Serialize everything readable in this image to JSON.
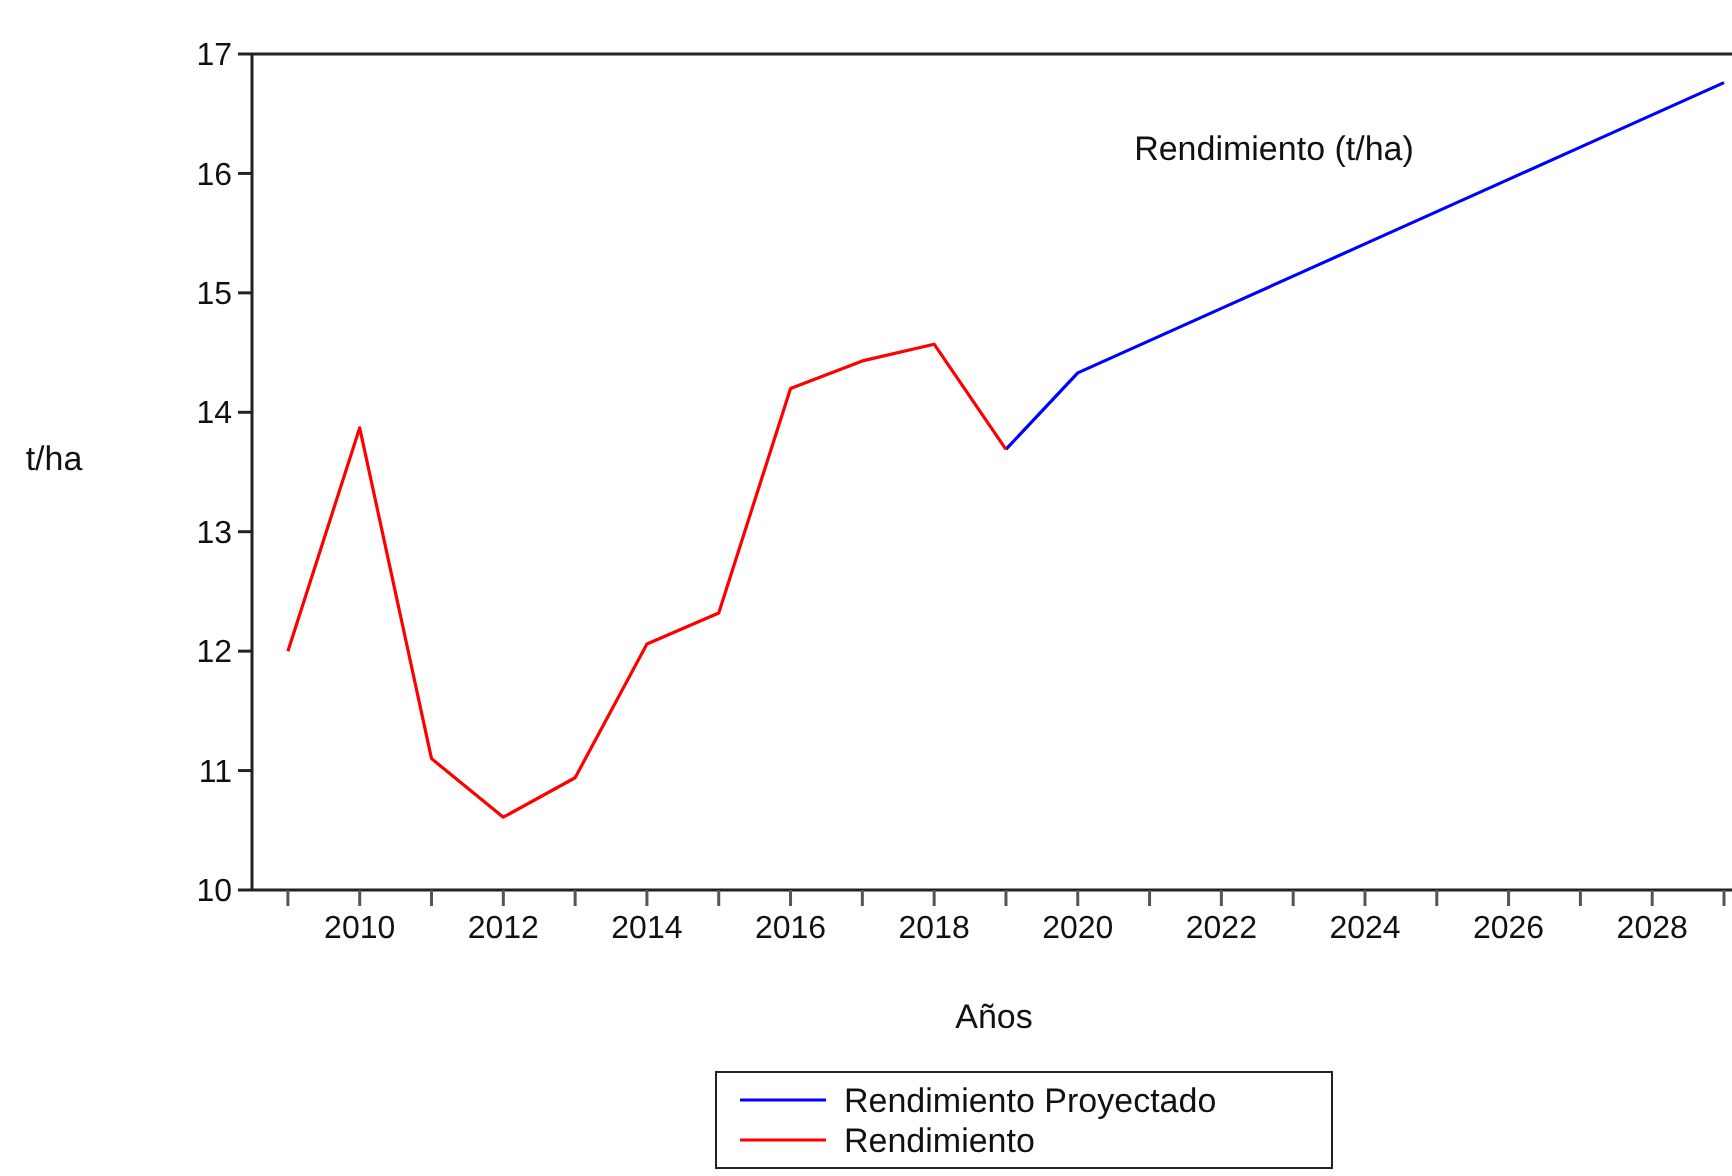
{
  "chart_data": {
    "type": "line",
    "title": "Rendimiento (t/ha)",
    "xlabel": "Años",
    "ylabel": "t/ha",
    "x": [
      2009,
      2010,
      2011,
      2012,
      2013,
      2014,
      2015,
      2016,
      2017,
      2018,
      2019,
      2020,
      2021,
      2022,
      2023,
      2024,
      2025,
      2026,
      2027,
      2028,
      2029
    ],
    "series": [
      {
        "name": "Rendimiento Proyectado",
        "color": "#0000ff",
        "values": [
          null,
          null,
          null,
          null,
          null,
          null,
          null,
          null,
          null,
          null,
          13.69,
          14.33,
          14.6,
          14.87,
          15.14,
          15.41,
          15.68,
          15.95,
          16.22,
          16.49,
          16.76
        ]
      },
      {
        "name": "Rendimiento",
        "color": "#ff0000",
        "values": [
          12.0,
          13.87,
          11.1,
          10.61,
          10.94,
          12.06,
          12.32,
          14.2,
          14.43,
          14.57,
          13.69,
          null,
          null,
          null,
          null,
          null,
          null,
          null,
          null,
          null,
          null
        ]
      }
    ],
    "xlim": [
      2008.5,
      2029
    ],
    "xticks": [
      {
        "value": 2009,
        "label": null
      },
      2010,
      {
        "value": 2011,
        "label": null
      },
      2012,
      {
        "value": 2013,
        "label": null
      },
      2014,
      {
        "value": 2015,
        "label": null
      },
      2016,
      {
        "value": 2017,
        "label": null
      },
      2018,
      {
        "value": 2019,
        "label": null
      },
      2020,
      {
        "value": 2021,
        "label": null
      },
      2022,
      {
        "value": 2023,
        "label": null
      },
      2024,
      {
        "value": 2025,
        "label": null
      },
      2026,
      {
        "value": 2027,
        "label": null
      },
      2028,
      {
        "value": 2029,
        "label": null
      }
    ],
    "ylim": [
      10,
      17
    ],
    "yticks": [
      10,
      11,
      12,
      13,
      14,
      15,
      16,
      17
    ],
    "grid": false,
    "legend": "bottom",
    "marker": "none",
    "line_style": "solid"
  }
}
